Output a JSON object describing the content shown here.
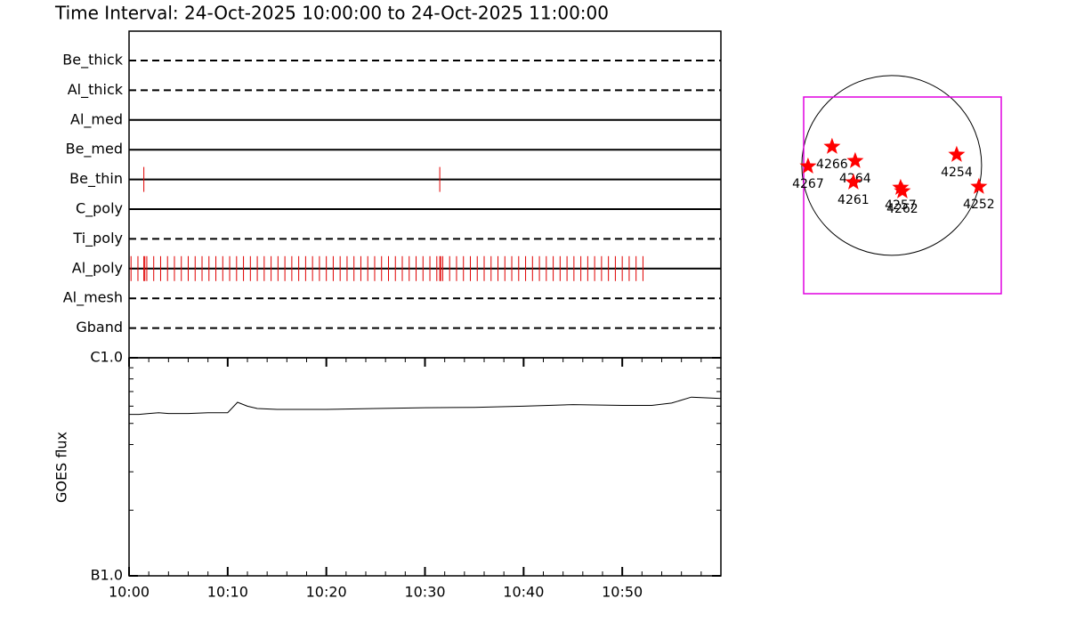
{
  "title": "Time Interval: 24-Oct-2025 10:00:00 to 24-Oct-2025 11:00:00",
  "chart_data": [
    {
      "type": "strip",
      "categories": [
        "Be_thick",
        "Al_thick",
        "Al_med",
        "Be_med",
        "Be_thin",
        "C_poly",
        "Ti_poly",
        "Al_poly",
        "Al_mesh",
        "Gband"
      ],
      "line_styles": [
        "dashed",
        "dashed",
        "solid",
        "solid",
        "solid",
        "solid",
        "dashed",
        "solid",
        "dashed",
        "dashed"
      ],
      "color": "#e00000",
      "xlim": [
        0,
        60
      ],
      "events": [
        [],
        [],
        [],
        [],
        [
          1.5,
          31.5
        ],
        [],
        [],
        [
          0.2,
          0.9,
          1.5,
          1.6,
          1.8,
          2.5,
          3.2,
          3.9,
          4.6,
          5.3,
          6.0,
          6.7,
          7.4,
          8.1,
          8.8,
          9.5,
          10.2,
          10.9,
          11.6,
          12.3,
          13.0,
          13.7,
          14.4,
          15.1,
          15.8,
          16.5,
          17.2,
          17.9,
          18.6,
          19.3,
          20.0,
          20.7,
          21.4,
          22.1,
          22.8,
          23.5,
          24.2,
          24.9,
          25.6,
          26.3,
          27.0,
          27.7,
          28.4,
          29.1,
          29.8,
          30.5,
          31.2,
          31.5,
          31.6,
          31.8,
          32.5,
          33.2,
          33.9,
          34.6,
          35.3,
          36.0,
          36.7,
          37.4,
          38.1,
          38.8,
          39.5,
          40.2,
          40.9,
          41.6,
          42.3,
          43.0,
          43.7,
          44.4,
          45.1,
          45.8,
          46.5,
          47.2,
          47.9,
          48.6,
          49.3,
          50.0,
          50.7,
          51.4,
          52.1
        ],
        [],
        []
      ]
    },
    {
      "type": "line",
      "y_label": "GOES flux",
      "color": "#000000",
      "log_y": true,
      "x": [
        0,
        1,
        2,
        3,
        4,
        6,
        8,
        10,
        11,
        12,
        13,
        15,
        20,
        25,
        30,
        35,
        40,
        45,
        50,
        53,
        55,
        57,
        60
      ],
      "values": [
        5.5e-07,
        5.5e-07,
        5.55e-07,
        5.6e-07,
        5.55e-07,
        5.55e-07,
        5.6e-07,
        5.6e-07,
        6.25e-07,
        6e-07,
        5.85e-07,
        5.8e-07,
        5.8e-07,
        5.85e-07,
        5.9e-07,
        5.92e-07,
        6e-07,
        6.1e-07,
        6.05e-07,
        6.05e-07,
        6.2e-07,
        6.6e-07,
        6.5e-07
      ],
      "xlim": [
        0,
        60
      ],
      "xticks": [
        {
          "value": 0,
          "label": "10:00"
        },
        {
          "value": 10,
          "label": "10:10"
        },
        {
          "value": 20,
          "label": "10:20"
        },
        {
          "value": 30,
          "label": "10:30"
        },
        {
          "value": 40,
          "label": "10:40"
        },
        {
          "value": 50,
          "label": "10:50"
        }
      ],
      "minor_xticks": [
        2,
        4,
        6,
        8,
        12,
        14,
        16,
        18,
        22,
        24,
        26,
        28,
        32,
        34,
        36,
        38,
        42,
        44,
        46,
        48,
        52,
        54,
        56,
        58
      ],
      "ylim": [
        1e-07,
        1e-06
      ],
      "yticks": [
        {
          "value": 1e-07,
          "label": "B1.0"
        },
        {
          "value": 1e-06,
          "label": "C1.0"
        }
      ],
      "minor_yticks": [
        2e-07,
        3e-07,
        4e-07,
        5e-07,
        6e-07,
        7e-07,
        8e-07,
        9e-07
      ]
    },
    {
      "type": "scatter",
      "xlim": [
        -940,
        1170
      ],
      "ylim": [
        -1370,
        730
      ],
      "disk_radius": 960,
      "box_color": "#e000e0",
      "color": "#ff0000",
      "labels": [
        "4266",
        "4264",
        "4267",
        "4261",
        "4257",
        "4262",
        "4254",
        "4252"
      ],
      "x": [
        -637,
        -390,
        -893,
        -409,
        95,
        114,
        694,
        931
      ],
      "y": [
        200,
        48,
        -10,
        -180,
        -238,
        -275,
        114,
        -228
      ]
    }
  ]
}
